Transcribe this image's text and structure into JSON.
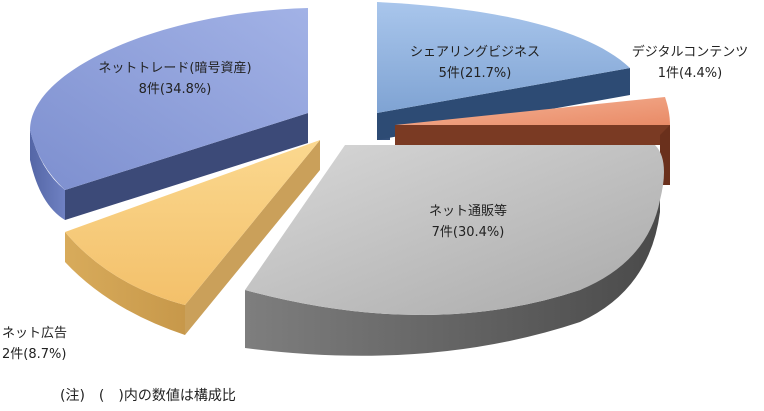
{
  "chart_data": {
    "type": "pie",
    "title": "",
    "slices": [
      {
        "name": "シェアリングビジネス",
        "count": 5,
        "count_label": "5件",
        "percent": 21.7,
        "percent_label": "(21.7%)",
        "color": "#8FB3E0"
      },
      {
        "name": "デジタルコンテンツ",
        "count": 1,
        "count_label": "1件",
        "percent": 4.4,
        "percent_label": "(4.4%)",
        "color": "#EE9A7A"
      },
      {
        "name": "ネット通販等",
        "count": 7,
        "count_label": "7件",
        "percent": 30.4,
        "percent_label": "(30.4%)",
        "color": "#BDBDBD"
      },
      {
        "name": "ネット広告",
        "count": 2,
        "count_label": "2件",
        "percent": 8.7,
        "percent_label": "(8.7%)",
        "color": "#FAD07E"
      },
      {
        "name": "ネットトレード(暗号資産)",
        "count": 8,
        "count_label": "8件",
        "percent": 34.8,
        "percent_label": "(34.8%)",
        "color": "#95A7DE"
      }
    ],
    "legend": "none",
    "exploded": true,
    "three_d": true
  },
  "note": "(注)　(　)内の数値は構成比"
}
